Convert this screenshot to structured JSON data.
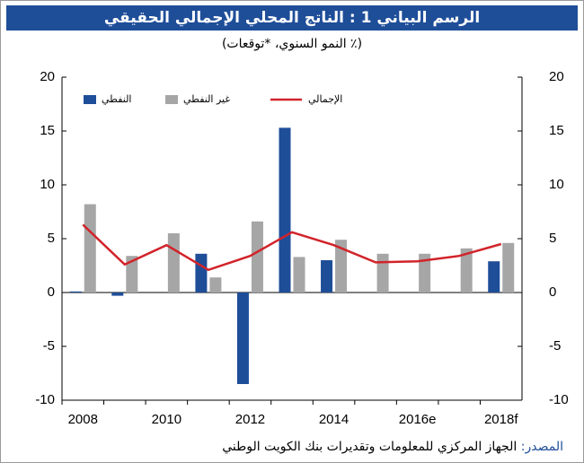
{
  "chart_data": {
    "type": "bar",
    "title": "الرسم البياني 1 : الناتج المحلي الإجمالي الحقيقي",
    "subtitle": "(٪ النمو السنوي، *توقعات)",
    "source_label": "المصدر:",
    "source_text": "الجهاز المركزي للمعلومات وتقديرات بنك الكويت الوطني",
    "categories": [
      "2008",
      null,
      "2010",
      null,
      "2012",
      null,
      "2014",
      null,
      "2016e",
      null,
      "2018f"
    ],
    "series": [
      {
        "name": "النفطي",
        "type": "bar",
        "color": "#1f4e99",
        "values": [
          0.1,
          -0.3,
          0,
          3.6,
          -8.5,
          15.3,
          3.0,
          0,
          0,
          0,
          2.9
        ]
      },
      {
        "name": "غير النفطي",
        "type": "bar",
        "color": "#a6a6a6",
        "values": [
          8.2,
          3.4,
          5.5,
          1.4,
          6.6,
          3.3,
          4.9,
          3.6,
          3.6,
          4.1,
          4.6
        ]
      },
      {
        "name": "الإجمالي",
        "type": "line",
        "color": "#d2232a",
        "values": [
          6.3,
          2.6,
          4.4,
          2.1,
          3.4,
          5.6,
          4.4,
          2.8,
          2.9,
          3.4,
          4.5
        ]
      }
    ],
    "ylim": [
      -10,
      20
    ],
    "yticks": [
      -10,
      -5,
      0,
      5,
      10,
      15,
      20
    ],
    "y2lim": [
      -10,
      20
    ],
    "y2ticks": [
      -10,
      -5,
      0,
      5,
      10,
      15,
      20
    ],
    "grid": false
  }
}
